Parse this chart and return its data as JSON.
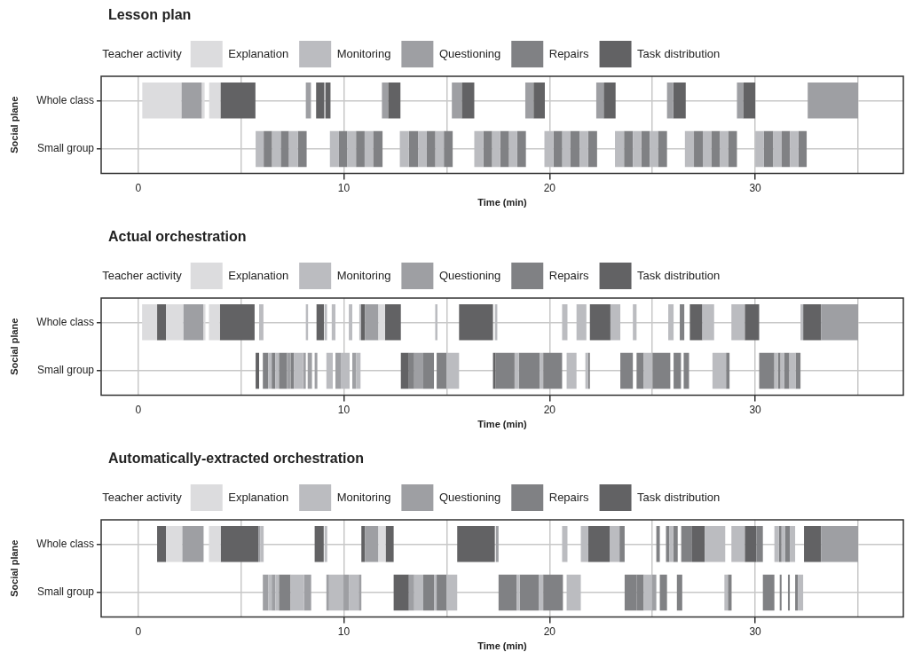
{
  "chart_data": [
    {
      "type": "bar",
      "title": "Lesson plan",
      "xlabel": "Time (min)",
      "ylabel": "Social plane",
      "legend_title": "Teacher activity",
      "legend": "top",
      "orientation": "horizontal",
      "categories": [
        "Whole class",
        "Small group"
      ],
      "xlim": [
        -1.8,
        37.2
      ],
      "xticks": [
        0,
        {
          "value": 5,
          "label": null
        },
        10,
        {
          "value": 15,
          "label": null
        },
        20,
        {
          "value": 25,
          "label": null
        },
        30,
        {
          "value": 35,
          "label": null
        }
      ],
      "grid": true,
      "series": [
        {
          "name": "Explanation",
          "color": "#dcdcde",
          "x": [
            "Whole class",
            "Whole class",
            "Whole class"
          ],
          "base": [
            0.2,
            3.1,
            3.45
          ],
          "values": [
            1.9,
            0.13,
            0.55
          ]
        },
        {
          "name": "Monitoring",
          "color": "#bbbcc0",
          "x": [
            "Small group",
            "Small group",
            "Small group",
            "Small group",
            "Small group",
            "Small group",
            "Small group",
            "Small group",
            "Small group",
            "Small group",
            "Small group",
            "Small group",
            "Small group",
            "Small group",
            "Small group",
            "Small group",
            "Small group",
            "Small group",
            "Small group",
            "Small group",
            "Small group",
            "Small group",
            "Small group",
            "Small group"
          ],
          "base": [
            5.71,
            6.51,
            7.33,
            9.32,
            10.17,
            11.01,
            12.72,
            13.62,
            14.45,
            16.34,
            17.21,
            18.03,
            19.75,
            20.62,
            21.47,
            23.18,
            24.05,
            24.87,
            26.58,
            27.45,
            28.29,
            30.0,
            30.88,
            31.69
          ],
          "values": [
            0.39,
            0.42,
            0.43,
            0.44,
            0.42,
            0.41,
            0.44,
            0.41,
            0.41,
            0.44,
            0.39,
            0.4,
            0.44,
            0.38,
            0.4,
            0.44,
            0.41,
            0.4,
            0.44,
            0.41,
            0.39,
            0.41,
            0.41,
            0.41
          ]
        },
        {
          "name": "Questioning",
          "color": "#9e9fa3",
          "x": [
            "Whole class",
            "Whole class",
            "Whole class",
            "Whole class",
            "Whole class",
            "Whole class",
            "Whole class",
            "Whole class",
            "Whole class"
          ],
          "base": [
            2.1,
            8.15,
            11.85,
            15.25,
            18.82,
            22.27,
            25.71,
            29.11,
            32.55
          ],
          "values": [
            1.0,
            0.25,
            0.3,
            0.48,
            0.4,
            0.36,
            0.3,
            0.3,
            2.45
          ]
        },
        {
          "name": "Repairs",
          "color": "#808184",
          "x": [
            "Small group",
            "Small group",
            "Small group",
            "Small group",
            "Small group",
            "Small group",
            "Small group",
            "Small group",
            "Small group",
            "Small group",
            "Small group",
            "Small group",
            "Small group",
            "Small group",
            "Small group",
            "Small group",
            "Small group",
            "Small group",
            "Small group",
            "Small group",
            "Small group",
            "Small group",
            "Small group",
            "Small group"
          ],
          "base": [
            6.1,
            6.93,
            7.76,
            9.76,
            10.59,
            11.42,
            13.16,
            14.03,
            14.86,
            16.78,
            17.6,
            18.43,
            20.19,
            21.0,
            21.87,
            23.62,
            24.46,
            25.27,
            27.02,
            27.86,
            28.68,
            30.41,
            31.29,
            32.1
          ],
          "values": [
            0.41,
            0.4,
            0.43,
            0.41,
            0.42,
            0.46,
            0.46,
            0.42,
            0.43,
            0.43,
            0.43,
            0.42,
            0.43,
            0.47,
            0.44,
            0.43,
            0.41,
            0.44,
            0.43,
            0.43,
            0.43,
            0.47,
            0.4,
            0.4
          ]
        },
        {
          "name": "Task distribution",
          "color": "#626264",
          "x": [
            "Whole class",
            "Whole class",
            "Whole class",
            "Whole class",
            "Whole class",
            "Whole class",
            "Whole class",
            "Whole class",
            "Whole class"
          ],
          "base": [
            4.0,
            8.65,
            9.1,
            12.15,
            15.73,
            19.22,
            22.63,
            26.01,
            29.41
          ],
          "values": [
            1.7,
            0.4,
            0.25,
            0.6,
            0.61,
            0.55,
            0.58,
            0.61,
            0.59
          ]
        }
      ]
    },
    {
      "type": "bar",
      "title": "Actual orchestration",
      "xlabel": "Time (min)",
      "ylabel": "Social plane",
      "legend_title": "Teacher activity",
      "legend": "top",
      "orientation": "horizontal",
      "categories": [
        "Whole class",
        "Small group"
      ],
      "xlim": [
        -1.8,
        37.2
      ],
      "xticks": [
        0,
        {
          "value": 5,
          "label": null
        },
        10,
        {
          "value": 15,
          "label": null
        },
        20,
        {
          "value": 25,
          "label": null
        },
        30,
        {
          "value": 35,
          "label": null
        }
      ],
      "grid": true,
      "series": [
        {
          "name": "Explanation",
          "color": "#dcdcde",
          "x": [
            "Whole class",
            "Whole class",
            "Whole class",
            "Whole class",
            "Whole class"
          ],
          "base": [
            0.19,
            1.35,
            3.18,
            3.44,
            11.68
          ],
          "values": [
            0.73,
            0.84,
            0.09,
            0.53,
            0.32
          ]
        },
        {
          "name": "Monitoring",
          "color": "#bbbcc0",
          "x": [
            "Whole class",
            "Whole class",
            "Whole class",
            "Whole class",
            "Whole class",
            "Whole class",
            "Whole class",
            "Whole class",
            "Whole class",
            "Whole class",
            "Whole class",
            "Whole class",
            "Whole class",
            "Whole class",
            "Whole class",
            "Whole class",
            "Small group",
            "Small group",
            "Small group",
            "Small group",
            "Small group",
            "Small group",
            "Small group",
            "Small group",
            "Small group",
            "Small group",
            "Small group",
            "Small group",
            "Small group",
            "Small group",
            "Small group",
            "Small group"
          ],
          "base": [
            5.88,
            8.15,
            9.06,
            9.41,
            10.24,
            10.75,
            14.44,
            17.34,
            20.61,
            21.31,
            22.96,
            24.05,
            25.77,
            27.43,
            28.84,
            32.2,
            6.32,
            6.67,
            7.58,
            9.15,
            9.85,
            10.59,
            14.99,
            18.3,
            19.52,
            20.83,
            21.74,
            24.58,
            27.92,
            30.93,
            31.23,
            31.66
          ],
          "values": [
            0.21,
            0.11,
            0.12,
            0.18,
            0.17,
            0.09,
            0.11,
            0.12,
            0.26,
            0.48,
            0.48,
            0.18,
            0.26,
            0.57,
            0.65,
            0.13,
            0.17,
            0.17,
            0.44,
            0.31,
            0.43,
            0.22,
            0.61,
            0.21,
            0.17,
            0.48,
            0.13,
            0.42,
            0.66,
            0.17,
            0.17,
            0.3
          ]
        },
        {
          "name": "Questioning",
          "color": "#9e9fa3",
          "x": [
            "Whole class",
            "Whole class",
            "Whole class",
            "Small group",
            "Small group",
            "Small group",
            "Small group",
            "Small group",
            "Small group",
            "Small group"
          ],
          "base": [
            2.19,
            11.02,
            33.2,
            7.23,
            8.02,
            8.24,
            8.58,
            9.59,
            10.41,
            13.42
          ],
          "values": [
            0.99,
            0.66,
            1.8,
            0.18,
            0.13,
            0.21,
            0.13,
            0.26,
            0.18,
            0.44
          ]
        },
        {
          "name": "Repairs",
          "color": "#808184",
          "x": [
            "Whole class",
            "Small group",
            "Small group",
            "Small group",
            "Small group",
            "Small group",
            "Small group",
            "Small group",
            "Small group",
            "Small group",
            "Small group",
            "Small group",
            "Small group",
            "Small group",
            "Small group",
            "Small group",
            "Small group",
            "Small group",
            "Small group",
            "Small group",
            "Small group",
            "Small group"
          ],
          "base": [
            26.33,
            6.06,
            6.49,
            6.84,
            7.41,
            13.16,
            13.86,
            14.51,
            17.38,
            18.51,
            19.69,
            21.87,
            23.44,
            24.23,
            25.0,
            26.03,
            26.52,
            28.58,
            30.19,
            31.1,
            31.4,
            31.96
          ],
          "values": [
            0.22,
            0.26,
            0.18,
            0.39,
            0.17,
            0.26,
            0.52,
            0.48,
            0.92,
            1.01,
            0.92,
            0.09,
            0.61,
            0.35,
            0.87,
            0.36,
            0.26,
            0.17,
            0.74,
            0.13,
            0.26,
            0.24
          ]
        },
        {
          "name": "Task distribution",
          "color": "#626264",
          "x": [
            "Whole class",
            "Whole class",
            "Whole class",
            "Whole class",
            "Whole class",
            "Whole class",
            "Whole class",
            "Whole class",
            "Whole class",
            "Whole class",
            "Small group",
            "Small group",
            "Small group"
          ],
          "base": [
            0.92,
            3.97,
            8.67,
            10.84,
            12.0,
            15.6,
            21.96,
            26.82,
            29.49,
            32.33,
            5.71,
            12.77,
            17.25
          ],
          "values": [
            0.43,
            1.69,
            0.36,
            0.18,
            0.77,
            1.65,
            1.0,
            0.61,
            0.7,
            0.87,
            0.17,
            0.39,
            0.13
          ]
        }
      ]
    },
    {
      "type": "bar",
      "title": "Automatically-extracted orchestration",
      "xlabel": "Time (min)",
      "ylabel": "Social plane",
      "legend_title": "Teacher activity",
      "legend": "top",
      "orientation": "horizontal",
      "categories": [
        "Whole class",
        "Small group"
      ],
      "xlim": [
        -1.8,
        37.2
      ],
      "xticks": [
        0,
        {
          "value": 5,
          "label": null
        },
        10,
        {
          "value": 15,
          "label": null
        },
        20,
        {
          "value": 25,
          "label": null
        },
        30,
        {
          "value": 35,
          "label": null
        }
      ],
      "grid": true,
      "series": [
        {
          "name": "Explanation",
          "color": "#dcdcde",
          "x": [
            "Whole class",
            "Whole class",
            "Whole class"
          ],
          "base": [
            1.35,
            3.44,
            11.68
          ],
          "values": [
            0.79,
            0.57,
            0.35
          ]
        },
        {
          "name": "Monitoring",
          "color": "#bbbcc0",
          "x": [
            "Whole class",
            "Whole class",
            "Whole class",
            "Whole class",
            "Whole class",
            "Whole class",
            "Whole class",
            "Whole class",
            "Whole class",
            "Whole class",
            "Whole class",
            "Small group",
            "Small group",
            "Small group",
            "Small group",
            "Small group",
            "Small group",
            "Small group",
            "Small group",
            "Small group",
            "Small group",
            "Small group",
            "Small group",
            "Small group",
            "Small group"
          ],
          "base": [
            5.93,
            9.06,
            20.61,
            21.52,
            22.92,
            25.83,
            27.54,
            28.84,
            30.93,
            31.28,
            31.68,
            6.32,
            6.67,
            7.41,
            9.28,
            10.24,
            13.42,
            14.38,
            14.99,
            18.41,
            19.47,
            20.83,
            24.58,
            28.5,
            32.07
          ],
          "values": [
            0.17,
            0.13,
            0.26,
            0.35,
            0.48,
            0.18,
            1.0,
            0.65,
            0.22,
            0.18,
            0.26,
            0.17,
            0.17,
            0.65,
            0.7,
            0.48,
            0.44,
            0.13,
            0.52,
            0.14,
            0.22,
            0.69,
            0.39,
            0.17,
            0.26
          ]
        },
        {
          "name": "Questioning",
          "color": "#9e9fa3",
          "x": [
            "Whole class",
            "Whole class",
            "Whole class",
            "Whole class",
            "Whole class",
            "Small group",
            "Small group",
            "Small group",
            "Small group",
            "Small group",
            "Small group",
            "Small group",
            "Small group"
          ],
          "base": [
            2.14,
            5.84,
            11.02,
            17.39,
            33.2,
            6.06,
            6.49,
            8.06,
            9.15,
            9.98,
            10.72,
            13.16,
            24.97
          ],
          "values": [
            1.04,
            0.09,
            0.66,
            0.13,
            1.8,
            0.26,
            0.18,
            0.35,
            0.13,
            0.26,
            0.13,
            0.26,
            0.22
          ]
        },
        {
          "name": "Repairs",
          "color": "#808184",
          "x": [
            "Whole class",
            "Whole class",
            "Whole class",
            "Whole class",
            "Whole class",
            "Whole class",
            "Whole class",
            "Whole class",
            "Small group",
            "Small group",
            "Small group",
            "Small group",
            "Small group",
            "Small group",
            "Small group",
            "Small group",
            "Small group",
            "Small group",
            "Small group",
            "Small group",
            "Small group",
            "Small group",
            "Small group"
          ],
          "base": [
            23.4,
            25.19,
            25.66,
            26.01,
            26.4,
            30.06,
            31.15,
            31.46,
            6.84,
            13.86,
            14.51,
            17.52,
            18.55,
            19.69,
            23.65,
            24.23,
            25.36,
            26.19,
            28.67,
            30.37,
            31.19,
            31.59,
            31.94
          ],
          "values": [
            0.25,
            0.17,
            0.17,
            0.22,
            0.53,
            0.31,
            0.13,
            0.22,
            0.57,
            0.52,
            0.48,
            0.89,
            0.92,
            0.96,
            0.58,
            0.35,
            0.35,
            0.26,
            0.18,
            0.56,
            0.09,
            0.09,
            0.13
          ]
        },
        {
          "name": "Task distribution",
          "color": "#626264",
          "x": [
            "Whole class",
            "Whole class",
            "Whole class",
            "Whole class",
            "Whole class",
            "Whole class",
            "Whole class",
            "Whole class",
            "Whole class",
            "Whole class",
            "Small group"
          ],
          "base": [
            0.92,
            4.01,
            8.58,
            10.85,
            12.03,
            15.51,
            21.87,
            26.93,
            29.49,
            32.37,
            12.42
          ],
          "values": [
            0.43,
            1.83,
            0.44,
            0.17,
            0.39,
            1.83,
            1.05,
            0.61,
            0.57,
            0.83,
            0.74
          ]
        }
      ]
    }
  ]
}
